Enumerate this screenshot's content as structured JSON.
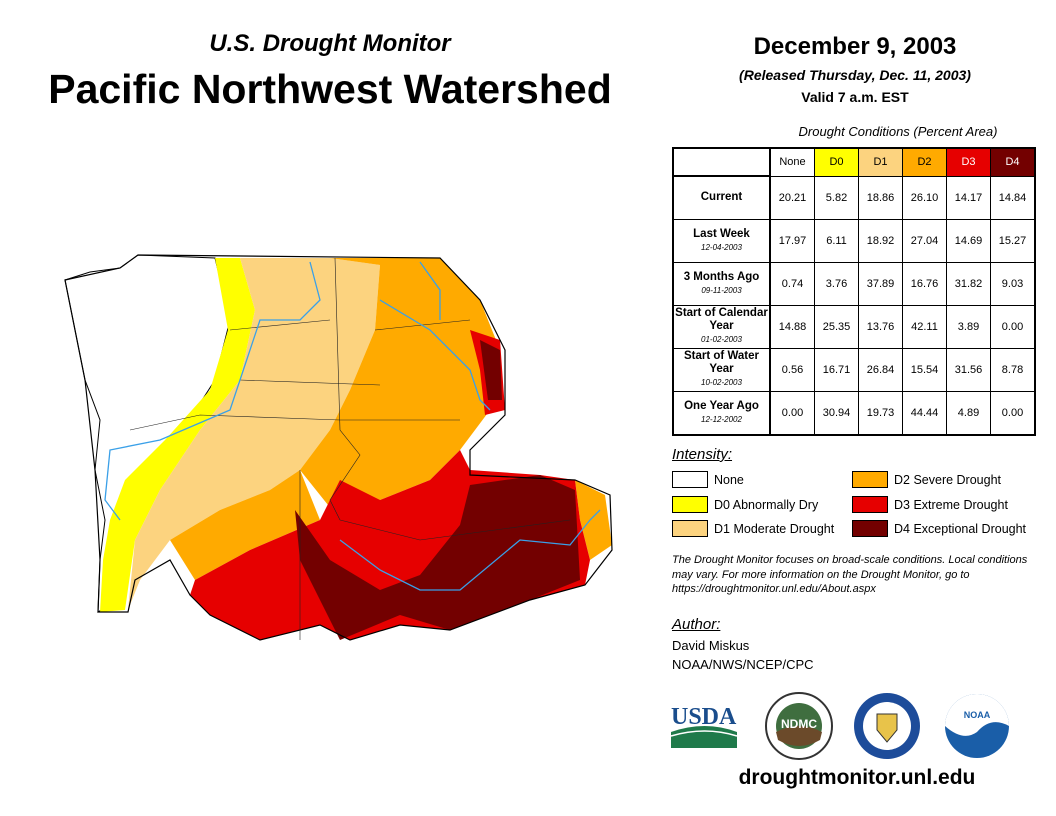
{
  "header": {
    "subtitle": "U.S. Drought Monitor",
    "title": "Pacific Northwest Watershed",
    "date": "December 9, 2003",
    "released": "(Released Thursday, Dec. 11, 2003)",
    "valid": "Valid 7 a.m. EST"
  },
  "table": {
    "caption": "Drought Conditions (Percent Area)",
    "columns": [
      "None",
      "D0",
      "D1",
      "D2",
      "D3",
      "D4"
    ],
    "column_colors": [
      "#ffffff",
      "#ffff00",
      "#fcd37f",
      "#ffaa00",
      "#e60000",
      "#730000"
    ],
    "rows": [
      {
        "label": "Current",
        "date": "",
        "values": [
          "20.21",
          "5.82",
          "18.86",
          "26.10",
          "14.17",
          "14.84"
        ]
      },
      {
        "label": "Last Week",
        "date": "12-04-2003",
        "values": [
          "17.97",
          "6.11",
          "18.92",
          "27.04",
          "14.69",
          "15.27"
        ]
      },
      {
        "label": "3 Months Ago",
        "date": "09-11-2003",
        "values": [
          "0.74",
          "3.76",
          "37.89",
          "16.76",
          "31.82",
          "9.03"
        ]
      },
      {
        "label": "Start of Calendar Year",
        "date": "01-02-2003",
        "values": [
          "14.88",
          "25.35",
          "13.76",
          "42.11",
          "3.89",
          "0.00"
        ]
      },
      {
        "label": "Start of Water Year",
        "date": "10-02-2003",
        "values": [
          "0.56",
          "16.71",
          "26.84",
          "15.54",
          "31.56",
          "8.78"
        ]
      },
      {
        "label": "One Year Ago",
        "date": "12-12-2002",
        "values": [
          "0.00",
          "30.94",
          "19.73",
          "44.44",
          "4.89",
          "0.00"
        ]
      }
    ]
  },
  "legend": {
    "title": "Intensity:",
    "items": [
      {
        "label": "None",
        "color": "#ffffff"
      },
      {
        "label": "D0 Abnormally Dry",
        "color": "#ffff00"
      },
      {
        "label": "D1 Moderate Drought",
        "color": "#fcd37f"
      },
      {
        "label": "D2 Severe Drought",
        "color": "#ffaa00"
      },
      {
        "label": "D3 Extreme Drought",
        "color": "#e60000"
      },
      {
        "label": "D4 Exceptional Drought",
        "color": "#730000"
      }
    ]
  },
  "note": "The Drought Monitor focuses on broad-scale conditions. Local conditions may vary. For more information on the Drought Monitor, go to https://droughtmonitor.unl.edu/About.aspx",
  "author": {
    "label": "Author:",
    "name": "David Miskus",
    "org": "NOAA/NWS/NCEP/CPC"
  },
  "logos": {
    "usda": "USDA",
    "ndmc": "NDMC",
    "noaa": "NOAA"
  },
  "url": "droughtmonitor.unl.edu"
}
